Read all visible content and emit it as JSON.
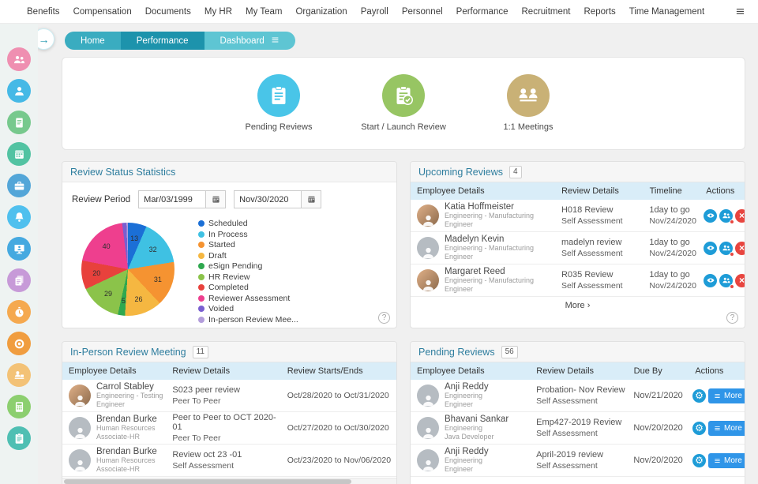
{
  "app": {
    "nav_items": [
      "Benefits",
      "Compensation",
      "Documents",
      "My HR",
      "My Team",
      "Organization",
      "Payroll",
      "Personnel",
      "Performance",
      "Recruitment",
      "Reports",
      "Time Management"
    ]
  },
  "sidebar": {
    "expand_arrow": "→",
    "icons": [
      {
        "name": "team-icon",
        "color": "#ef8fb1",
        "glyph": "people"
      },
      {
        "name": "employee-transfer-icon",
        "color": "#45b9e6",
        "glyph": "person"
      },
      {
        "name": "report-list-icon",
        "color": "#77c98d",
        "glyph": "doc"
      },
      {
        "name": "calendar-icon",
        "color": "#52c3a2",
        "glyph": "calendar"
      },
      {
        "name": "payroll-icon",
        "color": "#53a6d8",
        "glyph": "briefcase"
      },
      {
        "name": "notifications-icon",
        "color": "#4fc0ee",
        "glyph": "bell"
      },
      {
        "name": "workstation-icon",
        "color": "#45a9e0",
        "glyph": "monitor"
      },
      {
        "name": "documents-icon",
        "color": "#c79ad8",
        "glyph": "docs"
      },
      {
        "name": "timer-icon",
        "color": "#f5a94f",
        "glyph": "stopwatch"
      },
      {
        "name": "goals-icon",
        "color": "#f09d3f",
        "glyph": "target"
      },
      {
        "name": "workdesk-icon",
        "color": "#f3c276",
        "glyph": "desk"
      },
      {
        "name": "calculator-icon",
        "color": "#8ccf6f",
        "glyph": "calculator"
      },
      {
        "name": "forms-icon",
        "color": "#4fbfb3",
        "glyph": "clipboard"
      }
    ]
  },
  "tabs": [
    {
      "label": "Home"
    },
    {
      "label": "Performance"
    },
    {
      "label": "Dashboard"
    }
  ],
  "quick_actions": [
    {
      "label": "Pending Reviews",
      "color": "#49c5e8",
      "glyph": "clipboard"
    },
    {
      "label": "Start / Launch Review",
      "color": "#97c563",
      "glyph": "clipboard-check"
    },
    {
      "label": "1:1 Meetings",
      "color": "#c9b176",
      "glyph": "meeting"
    }
  ],
  "chart_data": {
    "type": "pie",
    "title": "Review Status Statistics",
    "labels": [
      "Scheduled",
      "In Process",
      "Started",
      "Draft",
      "eSign Pending",
      "HR Review",
      "Completed",
      "Reviewer Assessment",
      "Voided",
      "In-person Review Mee..."
    ],
    "values": [
      13,
      32,
      31,
      26,
      5,
      29,
      20,
      40,
      3,
      1
    ],
    "colors": [
      "#1b6fd6",
      "#3fc1e3",
      "#f59331",
      "#f5b741",
      "#2fa84f",
      "#8bc34a",
      "#e8413c",
      "#ee3f8e",
      "#7a5fd0",
      "#b39ddb"
    ],
    "legend_position": "right"
  },
  "panels": {
    "review_status": {
      "title": "Review Status Statistics",
      "period_label": "Review Period",
      "date_from": "Mar/03/1999",
      "date_to": "Nov/30/2020"
    },
    "upcoming": {
      "title": "Upcoming Reviews",
      "badge": "4",
      "columns": [
        "Employee Details",
        "Review Details",
        "Timeline",
        "Actions"
      ],
      "rows": [
        {
          "name": "Katia Hoffmeister",
          "dept": "Engineering - Manufacturing",
          "role": "Engineer",
          "review": "H018 Review",
          "review_type": "Self Assessment",
          "due_in": "1day to go",
          "due_date": "Nov/24/2020",
          "photo": true
        },
        {
          "name": "Madelyn Kevin",
          "dept": "Engineering - Manufacturing",
          "role": "Engineer",
          "review": "madelyn review",
          "review_type": "Self Assessment",
          "due_in": "1day to go",
          "due_date": "Nov/24/2020",
          "photo": false
        },
        {
          "name": "Margaret Reed",
          "dept": "Engineering - Manufacturing",
          "role": "Engineer",
          "review": "R035 Review",
          "review_type": "Self Assessment",
          "due_in": "1day to go",
          "due_date": "Nov/24/2020",
          "photo": true
        }
      ],
      "more_label": "More ›"
    },
    "inperson": {
      "title": "In-Person Review Meeting",
      "badge": "11",
      "columns": [
        "Employee Details",
        "Review Details",
        "Review Starts/Ends"
      ],
      "rows": [
        {
          "name": "Carrol Stabley",
          "dept": "Engineering - Testing",
          "role": "Engineer",
          "review": "S023 peer review",
          "review_type": "Peer To Peer",
          "range": "Oct/28/2020 to Oct/31/2020",
          "photo": true
        },
        {
          "name": "Brendan Burke",
          "dept": "Human Resources",
          "role": "Associate-HR",
          "review": "Peer to Peer to OCT 2020-01",
          "review_type": "Peer To Peer",
          "range": "Oct/27/2020 to Oct/30/2020",
          "photo": false
        },
        {
          "name": "Brendan Burke",
          "dept": "Human Resources",
          "role": "Associate-HR",
          "review": "Review oct 23 -01",
          "review_type": "Self Assessment",
          "range": "Oct/23/2020 to Nov/06/2020",
          "photo": false
        }
      ]
    },
    "pending": {
      "title": "Pending Reviews",
      "badge": "56",
      "columns": [
        "Employee Details",
        "Review Details",
        "Due By",
        "Actions"
      ],
      "rows": [
        {
          "name": "Anji Reddy",
          "dept": "Engineering",
          "role": "Engineer",
          "review": "Probation- Nov Review",
          "review_type": "Self Assessment",
          "due": "Nov/21/2020",
          "photo": false
        },
        {
          "name": "Bhavani Sankar",
          "dept": "Engineering",
          "role": "Java Developer",
          "review": "Emp427-2019 Review",
          "review_type": "Self Assessment",
          "due": "Nov/20/2020",
          "photo": false
        },
        {
          "name": "Anji Reddy",
          "dept": "Engineering",
          "role": "Engineer",
          "review": "April-2019 review",
          "review_type": "Self Assessment",
          "due": "Nov/20/2020",
          "photo": false
        }
      ],
      "more_button": "More"
    }
  }
}
